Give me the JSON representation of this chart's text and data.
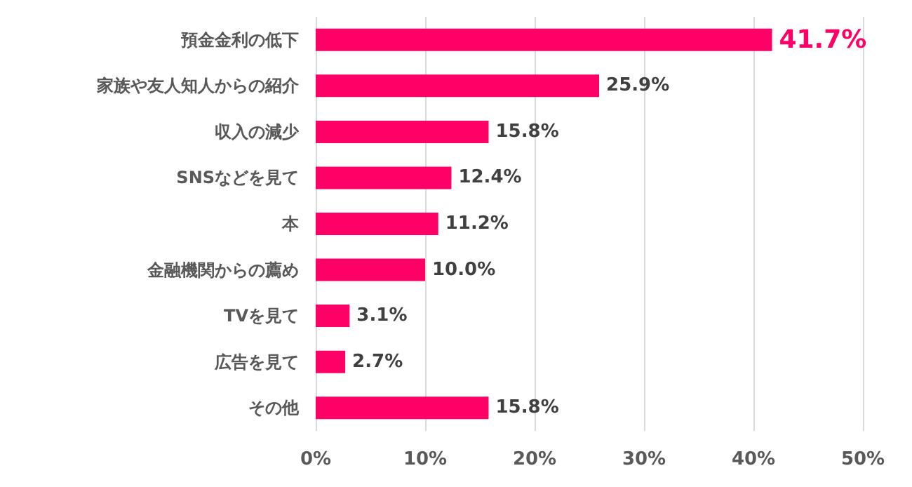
{
  "chart_data": {
    "type": "bar",
    "orientation": "horizontal",
    "categories": [
      "預金金利の低下",
      "家族や友人知人からの紹介",
      "収入の減少",
      "SNSなどを見て",
      "本",
      "金融機関からの薦め",
      "TVを見て",
      "広告を見て",
      "その他"
    ],
    "values": [
      41.7,
      25.9,
      15.8,
      12.4,
      11.2,
      10.0,
      3.1,
      2.7,
      15.8
    ],
    "value_labels": [
      "41.7%",
      "25.9%",
      "15.8%",
      "12.4%",
      "11.2%",
      "10.0%",
      "3.1%",
      "2.7%",
      "15.8%"
    ],
    "color": "#ff0066",
    "xlim": [
      0,
      50
    ],
    "xticks": [
      {
        "value": 0,
        "label": "0%"
      },
      {
        "value": 10,
        "label": "10%"
      },
      {
        "value": 20,
        "label": "20%"
      },
      {
        "value": 30,
        "label": "30%"
      },
      {
        "value": 40,
        "label": "40%"
      },
      {
        "value": 50,
        "label": "50%"
      }
    ],
    "grid": "x"
  }
}
